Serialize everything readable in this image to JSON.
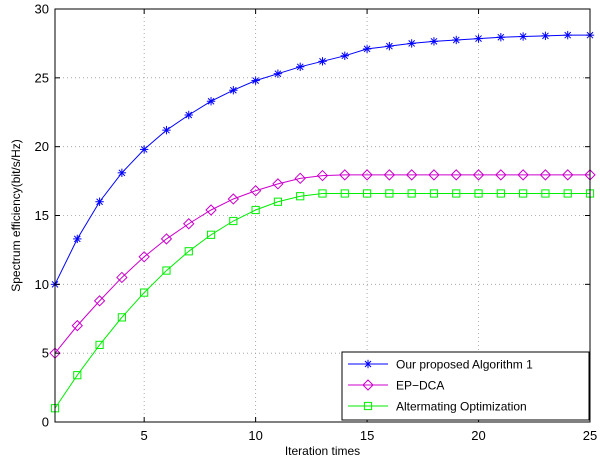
{
  "chart_data": {
    "type": "line",
    "title": "",
    "xlabel": "Iteration times",
    "ylabel": "Spectrum efficiency(bit/s/Hz)",
    "xlim": [
      1,
      25
    ],
    "ylim": [
      0,
      30
    ],
    "xticks": [
      5,
      10,
      15,
      20,
      25
    ],
    "yticks": [
      0,
      5,
      10,
      15,
      20,
      25,
      30
    ],
    "grid": true,
    "legend_position": "bottom-right",
    "x": [
      1,
      2,
      3,
      4,
      5,
      6,
      7,
      8,
      9,
      10,
      11,
      12,
      13,
      14,
      15,
      16,
      17,
      18,
      19,
      20,
      21,
      22,
      23,
      24,
      25
    ],
    "series": [
      {
        "name": "Our proposed Algorithm 1",
        "color": "#0000ff",
        "marker": "asterisk",
        "values": [
          10.0,
          13.3,
          16.0,
          18.1,
          19.8,
          21.2,
          22.3,
          23.3,
          24.1,
          24.8,
          25.3,
          25.8,
          26.2,
          26.6,
          27.1,
          27.3,
          27.5,
          27.65,
          27.75,
          27.85,
          27.95,
          28.0,
          28.05,
          28.1,
          28.1
        ]
      },
      {
        "name": "EP−DCA",
        "color": "#cc00cc",
        "marker": "diamond",
        "values": [
          5.0,
          7.0,
          8.8,
          10.5,
          12.0,
          13.3,
          14.4,
          15.4,
          16.2,
          16.8,
          17.3,
          17.7,
          17.9,
          17.95,
          17.95,
          17.95,
          17.95,
          17.95,
          17.95,
          17.95,
          17.95,
          17.95,
          17.95,
          17.95,
          17.95
        ]
      },
      {
        "name": "Altermating Optimization",
        "color": "#00ee00",
        "marker": "square",
        "values": [
          1.0,
          3.4,
          5.6,
          7.6,
          9.4,
          11.0,
          12.4,
          13.6,
          14.6,
          15.4,
          16.0,
          16.4,
          16.6,
          16.6,
          16.6,
          16.6,
          16.6,
          16.6,
          16.6,
          16.6,
          16.6,
          16.6,
          16.6,
          16.6,
          16.6
        ]
      }
    ]
  }
}
